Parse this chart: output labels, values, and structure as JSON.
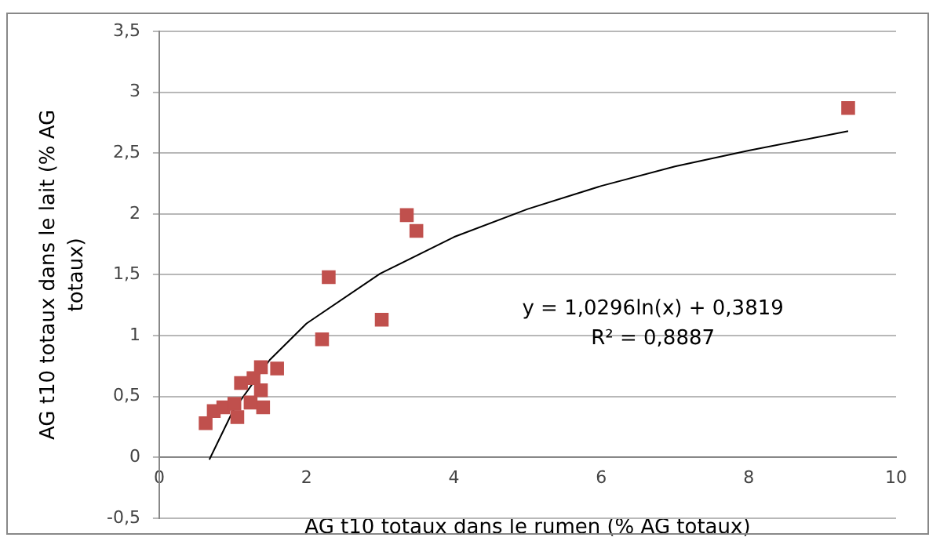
{
  "chart_data": {
    "type": "scatter",
    "xlabel": "AG t10 totaux dans le rumen (% AG totaux)",
    "ylabel": "AG t10 totaux dans le lait (% AG totaux)",
    "xlim": [
      0,
      10
    ],
    "xticks": [
      0,
      2,
      4,
      6,
      8,
      10
    ],
    "ylim": [
      -0.5,
      3.5
    ],
    "yticks": [
      {
        "value": -0.5,
        "label": "-0,5"
      },
      0,
      {
        "value": 0.5,
        "label": "0,5"
      },
      1,
      {
        "value": 1.5,
        "label": "1,5"
      },
      2,
      {
        "value": 2.5,
        "label": "2,5"
      },
      3,
      {
        "value": 3.5,
        "label": "3,5"
      }
    ],
    "grid": "y",
    "legend": false,
    "marker": "square",
    "series": [
      {
        "type": "scatter",
        "color": "#c0504d",
        "x": [
          0.63,
          0.74,
          0.87,
          1.02,
          1.06,
          1.11,
          1.24,
          1.28,
          1.38,
          1.38,
          1.41,
          1.6,
          2.21,
          2.3,
          3.02,
          3.36,
          3.49,
          9.35
        ],
        "values": [
          0.28,
          0.38,
          0.41,
          0.44,
          0.33,
          0.61,
          0.45,
          0.65,
          0.55,
          0.74,
          0.41,
          0.73,
          0.97,
          1.48,
          1.13,
          1.99,
          1.86,
          2.87
        ]
      },
      {
        "type": "line",
        "color": "#000000",
        "marker": "none",
        "x": [
          0.68,
          1,
          1.5,
          2,
          3,
          4,
          5,
          6,
          7,
          8,
          9.35
        ],
        "values": [
          -0.02,
          0.38,
          0.8,
          1.1,
          1.51,
          1.81,
          2.04,
          2.23,
          2.39,
          2.52,
          2.68
        ]
      }
    ],
    "annotations": [
      "y = 1,0296ln(x) + 0,3819",
      "R² = 0,8887"
    ]
  }
}
